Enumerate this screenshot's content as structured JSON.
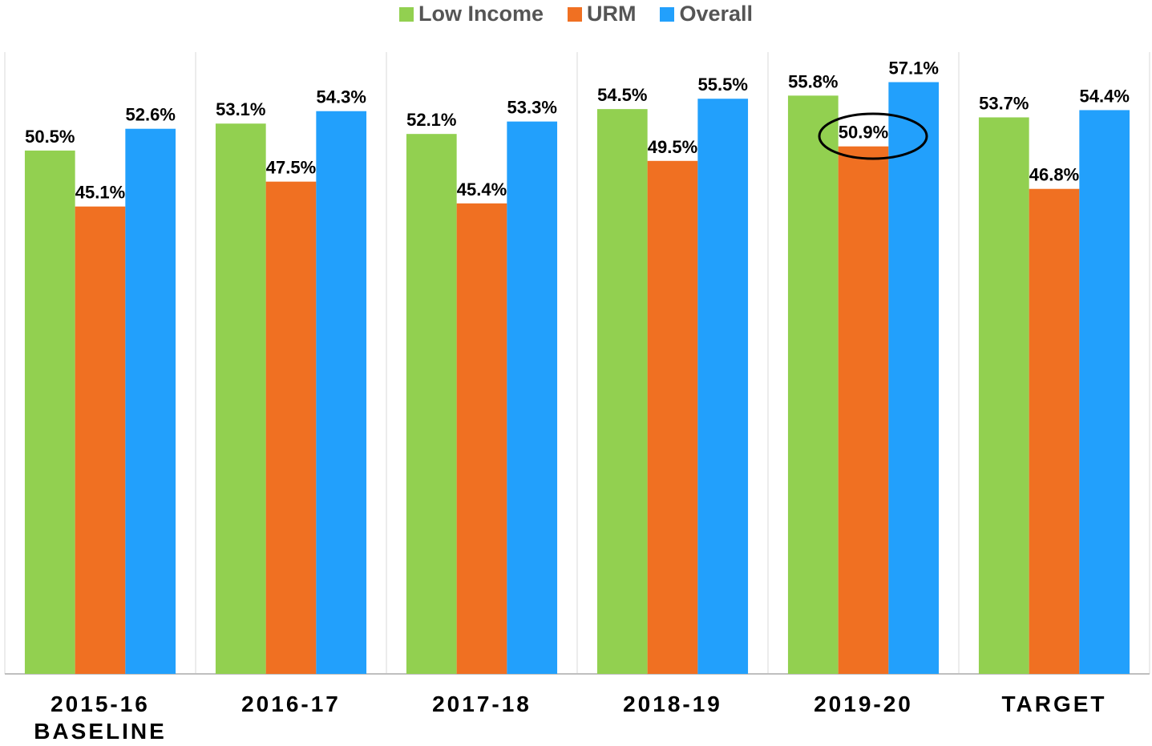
{
  "chart_data": {
    "type": "bar",
    "categories": [
      "2015-16 BASELINE",
      "2016-17",
      "2017-18",
      "2018-19",
      "2019-20",
      "TARGET"
    ],
    "series": [
      {
        "name": "Low Income",
        "color": "#92d050",
        "values": [
          50.5,
          53.1,
          52.1,
          54.5,
          55.8,
          53.7
        ],
        "value_labels": [
          "50.5%",
          "53.1%",
          "52.1%",
          "54.5%",
          "55.8%",
          "53.7%"
        ]
      },
      {
        "name": "URM",
        "color": "#f07022",
        "values": [
          45.1,
          47.5,
          45.4,
          49.5,
          50.9,
          46.8
        ],
        "value_labels": [
          "45.1%",
          "47.5%",
          "45.4%",
          "49.5%",
          "50.9%",
          "46.8%"
        ]
      },
      {
        "name": "Overall",
        "color": "#22a0fc",
        "values": [
          52.6,
          54.3,
          53.3,
          55.5,
          57.1,
          54.4
        ],
        "value_labels": [
          "52.6%",
          "54.3%",
          "53.3%",
          "55.5%",
          "57.1%",
          "54.4%"
        ]
      }
    ],
    "ylim": [
      0,
      60
    ],
    "legend": "top"
  }
}
